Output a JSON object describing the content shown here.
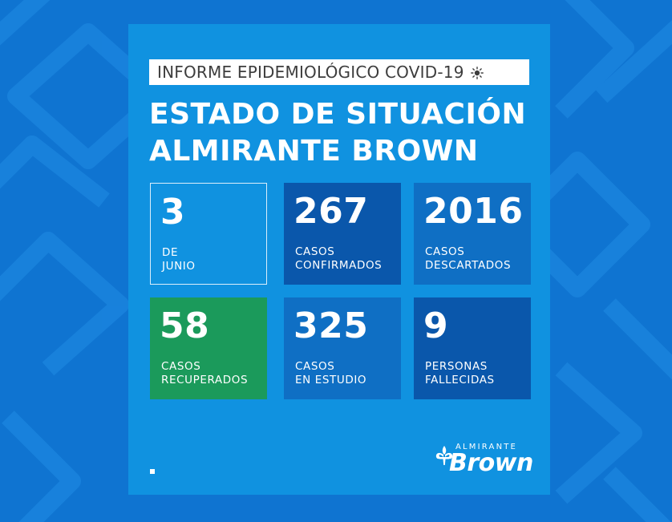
{
  "header": {
    "subtitle": "INFORME EPIDEMIOLÓGICO COVID-19",
    "subtitle_icon": "sun-icon",
    "title_line1": "ESTADO DE SITUACIÓN",
    "title_line2": "ALMIRANTE BROWN"
  },
  "cards": [
    {
      "value": "3",
      "label_line1": "DE",
      "label_line2": "JUNIO",
      "style": "outline"
    },
    {
      "value": "267",
      "label_line1": "CASOS",
      "label_line2": "CONFIRMADOS",
      "style": "dark"
    },
    {
      "value": "2016",
      "label_line1": "CASOS",
      "label_line2": "DESCARTADOS",
      "style": "mid"
    },
    {
      "value": "58",
      "label_line1": "CASOS",
      "label_line2": "RECUPERADOS",
      "style": "green"
    },
    {
      "value": "325",
      "label_line1": "CASOS",
      "label_line2": "EN ESTUDIO",
      "style": "mid"
    },
    {
      "value": "9",
      "label_line1": "PERSONAS",
      "label_line2": "FALLECIDAS",
      "style": "dark"
    }
  ],
  "logo": {
    "small_text": "ALMIRANTE",
    "big_text": "Brown",
    "icon": "fleur-de-lis-icon"
  },
  "colors": {
    "background": "#0f74d1",
    "panel": "#1092e0",
    "card_dark": "#0a57ab",
    "card_mid": "#0f6fc4",
    "card_green": "#1b9a5b",
    "text_white": "#ffffff",
    "subtitle_text": "#3d3d3d"
  }
}
